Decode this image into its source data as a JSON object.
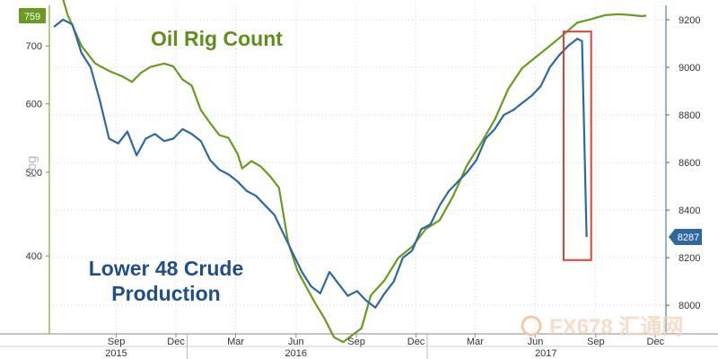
{
  "chart_data": {
    "type": "line",
    "title": "",
    "xlabel": "",
    "ylabel_left": "Log",
    "grid": true,
    "x_ticks": [
      "Sep",
      "Dec",
      "Mar",
      "Jun",
      "Sep",
      "Dec",
      "Mar",
      "Jun",
      "Sep",
      "Dec"
    ],
    "x_years": [
      "2015",
      "2016",
      "2017"
    ],
    "left_axis": {
      "ticks": [
        400,
        500,
        600,
        700
      ],
      "range": [
        325,
        780
      ]
    },
    "right_axis": {
      "ticks": [
        8000,
        8200,
        8400,
        8600,
        8800,
        9000,
        9200
      ],
      "range": [
        7880,
        9260
      ]
    },
    "series": [
      {
        "name": "Oil Rig Count",
        "axis": "left",
        "color": "#6a9a1f",
        "last_value_label": "759",
        "points": [
          [
            "2015-06-12",
            860
          ],
          [
            "2015-07-03",
            760
          ],
          [
            "2015-07-24",
            700
          ],
          [
            "2015-08-14",
            668
          ],
          [
            "2015-09-04",
            655
          ],
          [
            "2015-09-25",
            645
          ],
          [
            "2015-10-09",
            636
          ],
          [
            "2015-10-23",
            652
          ],
          [
            "2015-11-06",
            662
          ],
          [
            "2015-11-27",
            668
          ],
          [
            "2015-12-11",
            663
          ],
          [
            "2015-12-25",
            640
          ],
          [
            "2016-01-08",
            630
          ],
          [
            "2016-01-22",
            590
          ],
          [
            "2016-02-05",
            570
          ],
          [
            "2016-02-19",
            552
          ],
          [
            "2016-03-04",
            548
          ],
          [
            "2016-03-18",
            525
          ],
          [
            "2016-03-25",
            505
          ],
          [
            "2016-04-08",
            515
          ],
          [
            "2016-04-22",
            508
          ],
          [
            "2016-05-06",
            495
          ],
          [
            "2016-05-20",
            480
          ],
          [
            "2016-06-03",
            415
          ],
          [
            "2016-06-17",
            385
          ],
          [
            "2016-07-01",
            368
          ],
          [
            "2016-07-15",
            352
          ],
          [
            "2016-07-29",
            338
          ],
          [
            "2016-08-12",
            322
          ],
          [
            "2016-08-26",
            318
          ],
          [
            "2016-09-09",
            324
          ],
          [
            "2016-09-23",
            330
          ],
          [
            "2016-10-07",
            360
          ],
          [
            "2016-10-28",
            375
          ],
          [
            "2016-11-18",
            398
          ],
          [
            "2016-12-09",
            410
          ],
          [
            "2016-12-30",
            430
          ],
          [
            "2017-01-20",
            440
          ],
          [
            "2017-02-10",
            470
          ],
          [
            "2017-03-03",
            510
          ],
          [
            "2017-03-24",
            540
          ],
          [
            "2017-04-14",
            575
          ],
          [
            "2017-05-05",
            625
          ],
          [
            "2017-05-26",
            660
          ],
          [
            "2017-06-16",
            680
          ],
          [
            "2017-07-07",
            700
          ],
          [
            "2017-07-28",
            722
          ],
          [
            "2017-08-18",
            745
          ],
          [
            "2017-09-08",
            752
          ],
          [
            "2017-09-29",
            760
          ],
          [
            "2017-10-20",
            762
          ],
          [
            "2017-11-10",
            760
          ],
          [
            "2017-11-24",
            758
          ],
          [
            "2017-12-01",
            759
          ]
        ]
      },
      {
        "name": "Lower 48 Crude Production",
        "axis": "right",
        "color": "#2e68a1",
        "last_value_label": "8287",
        "points": [
          [
            "2015-06-12",
            9170
          ],
          [
            "2015-06-26",
            9200
          ],
          [
            "2015-07-10",
            9180
          ],
          [
            "2015-07-24",
            9060
          ],
          [
            "2015-08-07",
            9000
          ],
          [
            "2015-08-21",
            8860
          ],
          [
            "2015-09-04",
            8700
          ],
          [
            "2015-09-18",
            8680
          ],
          [
            "2015-10-02",
            8730
          ],
          [
            "2015-10-16",
            8630
          ],
          [
            "2015-10-30",
            8700
          ],
          [
            "2015-11-13",
            8720
          ],
          [
            "2015-11-27",
            8690
          ],
          [
            "2015-12-11",
            8700
          ],
          [
            "2015-12-25",
            8740
          ],
          [
            "2016-01-08",
            8720
          ],
          [
            "2016-01-22",
            8690
          ],
          [
            "2016-02-05",
            8610
          ],
          [
            "2016-02-19",
            8570
          ],
          [
            "2016-03-04",
            8550
          ],
          [
            "2016-03-18",
            8520
          ],
          [
            "2016-04-01",
            8480
          ],
          [
            "2016-04-15",
            8460
          ],
          [
            "2016-04-29",
            8420
          ],
          [
            "2016-05-13",
            8380
          ],
          [
            "2016-05-27",
            8300
          ],
          [
            "2016-06-10",
            8220
          ],
          [
            "2016-06-24",
            8140
          ],
          [
            "2016-07-08",
            8080
          ],
          [
            "2016-07-22",
            8050
          ],
          [
            "2016-08-05",
            8140
          ],
          [
            "2016-08-19",
            8090
          ],
          [
            "2016-09-02",
            8040
          ],
          [
            "2016-09-16",
            8060
          ],
          [
            "2016-09-30",
            8020
          ],
          [
            "2016-10-14",
            7990
          ],
          [
            "2016-10-28",
            8050
          ],
          [
            "2016-11-11",
            8100
          ],
          [
            "2016-11-25",
            8200
          ],
          [
            "2016-12-09",
            8230
          ],
          [
            "2016-12-23",
            8320
          ],
          [
            "2017-01-06",
            8340
          ],
          [
            "2017-01-20",
            8420
          ],
          [
            "2017-02-03",
            8480
          ],
          [
            "2017-02-17",
            8520
          ],
          [
            "2017-03-03",
            8560
          ],
          [
            "2017-03-17",
            8610
          ],
          [
            "2017-03-31",
            8700
          ],
          [
            "2017-04-14",
            8740
          ],
          [
            "2017-04-28",
            8800
          ],
          [
            "2017-05-12",
            8820
          ],
          [
            "2017-05-26",
            8850
          ],
          [
            "2017-06-09",
            8880
          ],
          [
            "2017-06-23",
            8920
          ],
          [
            "2017-07-07",
            9000
          ],
          [
            "2017-07-21",
            9050
          ],
          [
            "2017-08-04",
            9090
          ],
          [
            "2017-08-18",
            9120
          ],
          [
            "2017-08-25",
            9110
          ],
          [
            "2017-09-01",
            8287
          ]
        ]
      }
    ],
    "annotations": [
      {
        "text": "Oil Rig Count",
        "color": "#5e8f1a"
      },
      {
        "text": "Lower 48 Crude Production",
        "lines": [
          "Lower 48 Crude",
          "Production"
        ],
        "color": "#1f4f86"
      }
    ],
    "highlight_box": {
      "from": "2017-07-28",
      "to": "2017-09-08",
      "ymin": 8190,
      "ymax": 9150,
      "color": "#d9433b"
    },
    "watermark": "FX678 汇通网"
  }
}
